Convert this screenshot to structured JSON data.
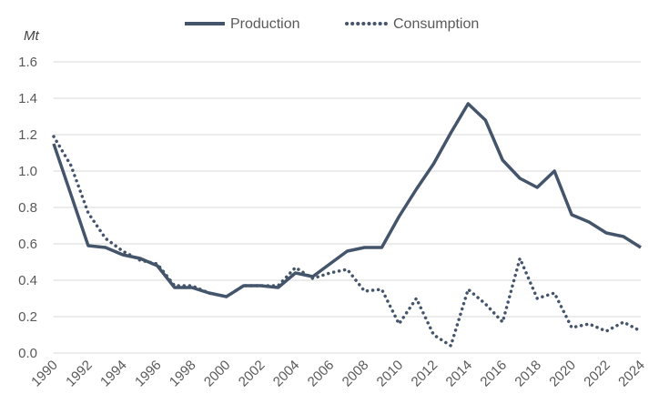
{
  "chart_data": {
    "type": "line",
    "title": "",
    "ylabel": "Mt",
    "xlabel": "",
    "ylim": [
      0,
      1.6
    ],
    "yticks": [
      "0.0",
      "0.2",
      "0.4",
      "0.6",
      "0.8",
      "1.0",
      "1.2",
      "1.4",
      "1.6"
    ],
    "xlim": [
      1990,
      2024
    ],
    "xticks": [
      "1990",
      "1992",
      "1994",
      "1996",
      "1998",
      "2000",
      "2002",
      "2004",
      "2006",
      "2008",
      "2010",
      "2012",
      "2014",
      "2016",
      "2018",
      "2020",
      "2022",
      "2024"
    ],
    "grid": true,
    "legend_position": "top",
    "x": [
      1990,
      1991,
      1992,
      1993,
      1994,
      1995,
      1996,
      1997,
      1998,
      1999,
      2000,
      2001,
      2002,
      2003,
      2004,
      2005,
      2006,
      2007,
      2008,
      2009,
      2010,
      2011,
      2012,
      2013,
      2014,
      2015,
      2016,
      2017,
      2018,
      2019,
      2020,
      2021,
      2022,
      2023,
      2024
    ],
    "series": [
      {
        "name": "Production",
        "style": "solid",
        "color": "#44546a",
        "values": [
          1.15,
          0.87,
          0.59,
          0.58,
          0.54,
          0.52,
          0.48,
          0.36,
          0.36,
          0.33,
          0.31,
          0.37,
          0.37,
          0.36,
          0.44,
          0.42,
          0.49,
          0.56,
          0.58,
          0.58,
          0.75,
          0.9,
          1.04,
          1.21,
          1.37,
          1.28,
          1.06,
          0.96,
          0.91,
          1.0,
          0.76,
          0.72,
          0.66,
          0.64,
          0.58
        ]
      },
      {
        "name": "Consumption",
        "style": "dotted",
        "color": "#44546a",
        "values": [
          1.19,
          1.03,
          0.77,
          0.63,
          0.56,
          0.51,
          0.49,
          0.37,
          0.37,
          0.33,
          0.31,
          0.37,
          0.37,
          0.37,
          0.47,
          0.41,
          0.44,
          0.46,
          0.34,
          0.35,
          0.16,
          0.3,
          0.1,
          0.04,
          0.35,
          0.27,
          0.17,
          0.52,
          0.3,
          0.33,
          0.14,
          0.16,
          0.12,
          0.17,
          0.12
        ]
      }
    ]
  }
}
